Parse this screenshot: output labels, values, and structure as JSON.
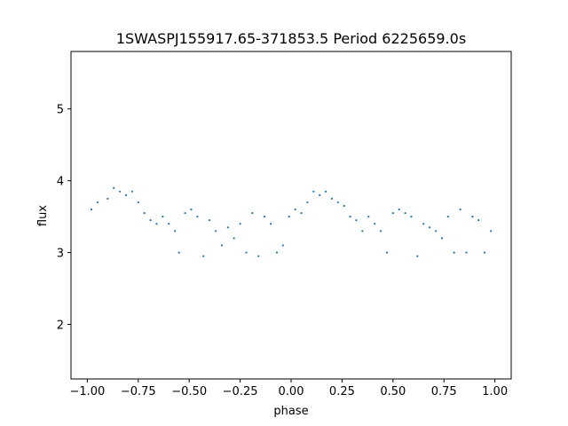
{
  "chart_data": {
    "type": "scatter",
    "title": "1SWASPJ155917.65-371853.5 Period 6225659.0s",
    "xlabel": "phase",
    "ylabel": "flux",
    "xlim": [
      -1.08,
      1.08
    ],
    "ylim": [
      1.24,
      5.8
    ],
    "x_ticks": [
      -1.0,
      -0.75,
      -0.5,
      -0.25,
      0.0,
      0.25,
      0.5,
      0.75,
      1.0
    ],
    "x_tick_labels": [
      "−1.00",
      "−0.75",
      "−0.50",
      "−0.25",
      "0.00",
      "0.25",
      "0.50",
      "0.75",
      "1.00"
    ],
    "y_ticks": [
      2,
      3,
      4,
      5
    ],
    "y_tick_labels": [
      "2",
      "3",
      "4",
      "5"
    ],
    "grid": false,
    "legend": "none",
    "marker_color": "#1f77b4",
    "series": [
      {
        "x": [
          -0.98,
          -0.95,
          -0.9,
          -0.87,
          -0.84,
          -0.81,
          -0.78,
          -0.75,
          -0.72,
          -0.69,
          -0.66,
          -0.63,
          -0.6,
          -0.57,
          -0.55,
          -0.52,
          -0.49,
          -0.46,
          -0.43,
          -0.4,
          -0.37,
          -0.34,
          -0.31,
          -0.28,
          -0.25,
          -0.22,
          -0.19,
          -0.16,
          -0.13,
          -0.1,
          -0.07,
          -0.04,
          -0.01,
          0.02,
          0.05,
          0.08,
          0.11,
          0.14,
          0.17,
          0.2,
          0.23,
          0.26,
          0.29,
          0.32,
          0.35,
          0.38,
          0.41,
          0.44,
          0.47,
          0.5,
          0.53,
          0.56,
          0.59,
          0.62,
          0.65,
          0.68,
          0.71,
          0.74,
          0.77,
          0.8,
          0.83,
          0.86,
          0.89,
          0.92,
          0.95,
          0.98
        ],
        "y": [
          3.6,
          3.7,
          3.75,
          3.9,
          3.85,
          3.8,
          3.85,
          3.7,
          3.55,
          3.45,
          3.4,
          3.5,
          3.4,
          3.3,
          3.0,
          3.55,
          3.6,
          3.5,
          2.95,
          3.45,
          3.3,
          3.1,
          3.35,
          3.2,
          3.4,
          3.0,
          3.55,
          2.95,
          3.5,
          3.4,
          3.0,
          3.1,
          3.5,
          3.6,
          3.55,
          3.7,
          3.85,
          3.8,
          3.85,
          3.75,
          3.7,
          3.65,
          3.5,
          3.45,
          3.3,
          3.5,
          3.4,
          3.3,
          3.0,
          3.55,
          3.6,
          3.55,
          3.5,
          2.95,
          3.4,
          3.35,
          3.3,
          3.2,
          3.5,
          3.0,
          3.6,
          3.0,
          3.5,
          3.45,
          3.0,
          3.3
        ]
      }
    ]
  }
}
